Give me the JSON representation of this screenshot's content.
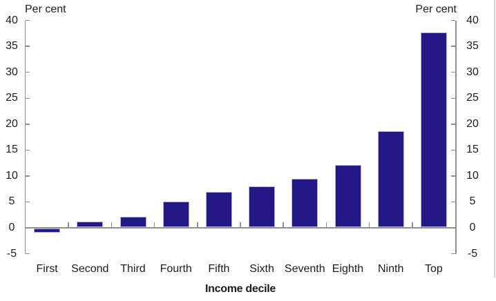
{
  "chart_data": {
    "type": "bar",
    "title": "",
    "categories": [
      "First",
      "Second",
      "Third",
      "Fourth",
      "Fifth",
      "Sixth",
      "Seventh",
      "Eighth",
      "Ninth",
      "Top"
    ],
    "values": [
      -0.9,
      1.2,
      2.1,
      5.1,
      6.9,
      8.0,
      9.5,
      12.1,
      18.6,
      37.7
    ],
    "xlabel": "Income decile",
    "ylabel_left": "Per cent",
    "ylabel_right": "Per cent",
    "ylim": [
      -5,
      40
    ],
    "yticks": [
      40,
      35,
      30,
      25,
      20,
      15,
      10,
      5,
      0,
      -5
    ],
    "grid": false,
    "legend": "none",
    "colors": {
      "bar_fill": "#231788",
      "bar_edge": "#b3aede",
      "axis": "#8f8f8f",
      "text": "#1c1c1c",
      "page_edge": "#cfd2d6"
    }
  }
}
